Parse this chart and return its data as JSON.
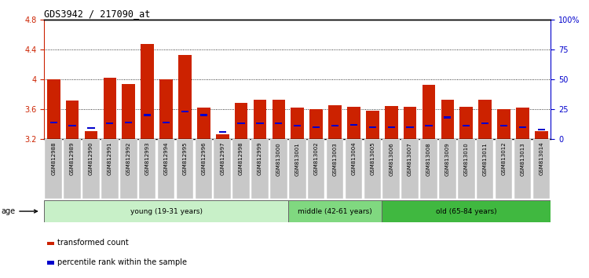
{
  "title": "GDS3942 / 217090_at",
  "samples": [
    "GSM812988",
    "GSM812989",
    "GSM812990",
    "GSM812991",
    "GSM812992",
    "GSM812993",
    "GSM812994",
    "GSM812995",
    "GSM812996",
    "GSM812997",
    "GSM812998",
    "GSM812999",
    "GSM813000",
    "GSM813001",
    "GSM813002",
    "GSM813003",
    "GSM813004",
    "GSM813005",
    "GSM813006",
    "GSM813007",
    "GSM813008",
    "GSM813009",
    "GSM813010",
    "GSM813011",
    "GSM813012",
    "GSM813013",
    "GSM813014"
  ],
  "transformed_count": [
    4.0,
    3.72,
    3.3,
    4.02,
    3.94,
    4.47,
    4.0,
    4.32,
    3.62,
    3.26,
    3.68,
    3.73,
    3.73,
    3.62,
    3.6,
    3.65,
    3.63,
    3.58,
    3.64,
    3.63,
    3.93,
    3.73,
    3.63,
    3.73,
    3.6,
    3.62,
    3.3
  ],
  "percentile_rank": [
    14,
    11,
    9,
    13,
    14,
    20,
    14,
    23,
    20,
    6,
    13,
    13,
    13,
    11,
    10,
    11,
    12,
    10,
    10,
    10,
    11,
    18,
    11,
    13,
    11,
    10,
    8
  ],
  "groups": [
    {
      "label": "young (19-31 years)",
      "start": 0,
      "end": 13,
      "color": "#c8f0c8"
    },
    {
      "label": "middle (42-61 years)",
      "start": 13,
      "end": 18,
      "color": "#80d880"
    },
    {
      "label": "old (65-84 years)",
      "start": 18,
      "end": 27,
      "color": "#40b840"
    }
  ],
  "ylim_left": [
    3.2,
    4.8
  ],
  "ylim_right": [
    0,
    100
  ],
  "yticks_left": [
    3.2,
    3.6,
    4.0,
    4.4,
    4.8
  ],
  "yticks_right": [
    0,
    25,
    50,
    75,
    100
  ],
  "ytick_labels_right": [
    "0",
    "25",
    "50",
    "75",
    "100%"
  ],
  "bar_color_red": "#cc2200",
  "bar_color_blue": "#0000cc",
  "bar_width": 0.7,
  "left_axis_color": "#cc2200",
  "right_axis_color": "#0000cc",
  "base_value": 3.2,
  "xtick_bg_color": "#c8c8c8"
}
